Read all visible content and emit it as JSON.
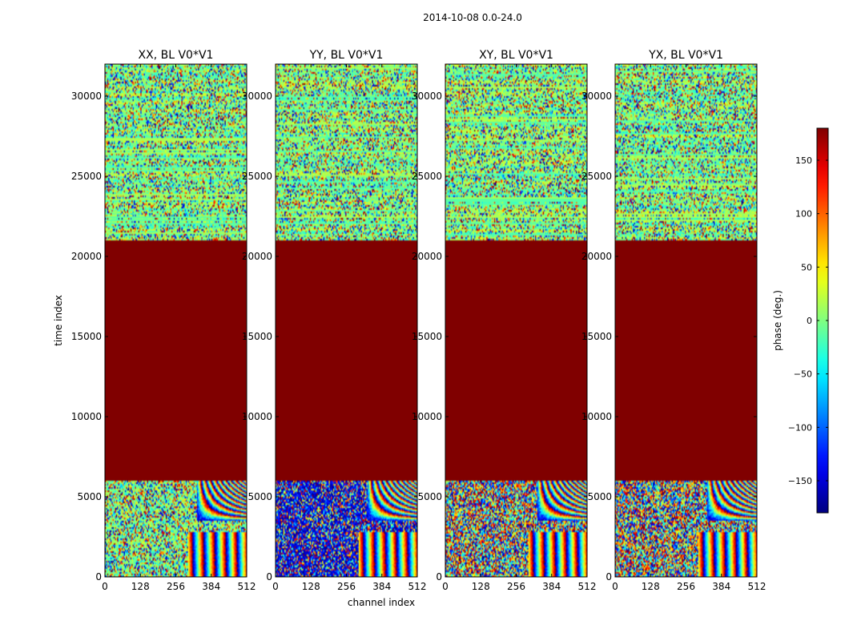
{
  "chart_data": {
    "type": "heatmap",
    "suptitle": "2014-10-08 0.0-24.0",
    "xlabel": "channel index",
    "ylabel": "time index",
    "xlim": [
      0,
      512
    ],
    "ylim": [
      0,
      32000
    ],
    "xticks": [
      0,
      128,
      256,
      384,
      512
    ],
    "yticks": [
      0,
      5000,
      10000,
      15000,
      20000,
      25000,
      30000
    ],
    "xtick_labels": [
      "0",
      "128",
      "256",
      "384",
      "512"
    ],
    "ytick_labels": [
      "0",
      "5000",
      "10000",
      "15000",
      "20000",
      "25000",
      "30000"
    ],
    "panels": [
      {
        "title": "XX, BL V0*V1",
        "noise_bias": 0.1
      },
      {
        "title": "YY, BL V0*V1",
        "noise_bias": -0.75
      },
      {
        "title": "XY, BL V0*V1",
        "noise_bias": 0.0
      },
      {
        "title": "YX, BL V0*V1",
        "noise_bias": 0.0
      }
    ],
    "regions": {
      "bottom_noisy": [
        0,
        6000
      ],
      "flagged_constant": [
        6000,
        21000
      ],
      "top_noisy": [
        21000,
        32000
      ]
    },
    "flagged_value": 180,
    "fringe_channel_start": 330,
    "colorbar": {
      "label": "phase (deg.)",
      "vmin": -180,
      "vmax": 180,
      "ticks": [
        150,
        100,
        50,
        0,
        -50,
        -100,
        -150
      ],
      "tick_labels": [
        "150",
        "100",
        "50",
        "0",
        "−50",
        "−100",
        "−150"
      ],
      "colormap": "jet"
    }
  }
}
